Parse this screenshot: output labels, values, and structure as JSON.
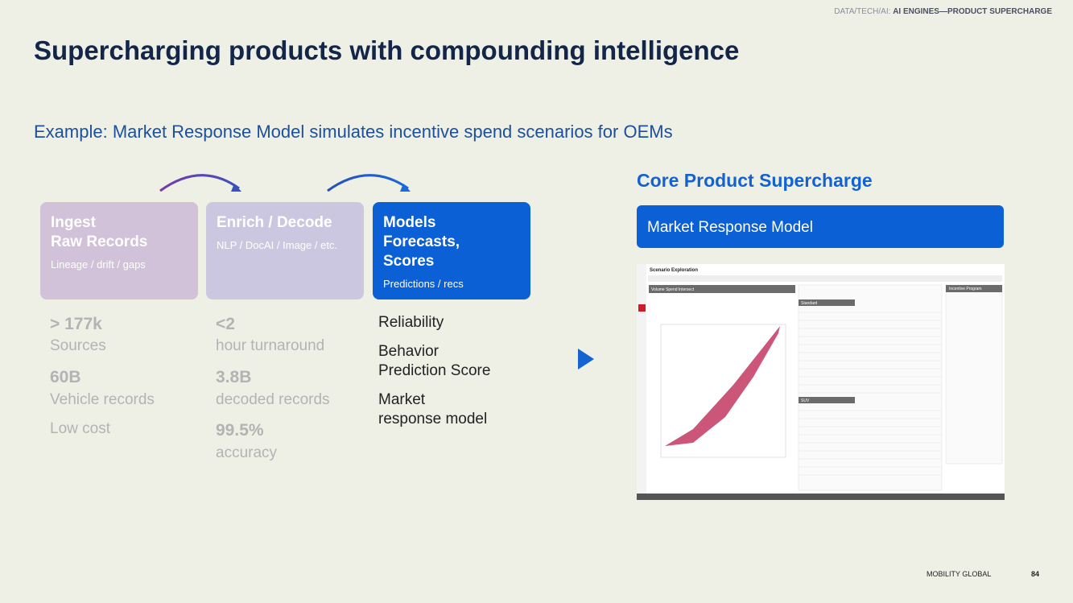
{
  "header": {
    "section": "DATA/TECH/AI: ",
    "topic": "AI ENGINES—PRODUCT SUPERCHARGE"
  },
  "title": "Supercharging products with compounding intelligence",
  "subtitle": "Example: Market Response Model simulates incentive spend scenarios for OEMs",
  "steps": [
    {
      "title_lines": [
        "Ingest",
        "Raw Records"
      ],
      "caption": "Lineage / drift / gaps"
    },
    {
      "title_lines": [
        "Enrich / Decode"
      ],
      "caption": "NLP / DocAI / Image / etc."
    },
    {
      "title_lines": [
        "Models",
        "Forecasts,",
        "Scores"
      ],
      "caption": "Predictions / recs"
    }
  ],
  "stats": [
    [
      {
        "value": "> 177k",
        "label": "Sources"
      },
      {
        "value": "60B",
        "label": "Vehicle records"
      },
      {
        "label": "Low cost"
      }
    ],
    [
      {
        "value": "<2",
        "label": "hour turnaround"
      },
      {
        "value": "3.8B",
        "label": "decoded records"
      },
      {
        "value": "99.5%",
        "label": "accuracy"
      }
    ]
  ],
  "outcomes": [
    [
      "Reliability"
    ],
    [
      "Behavior",
      "Prediction Score"
    ],
    [
      "Market",
      "response model"
    ]
  ],
  "product": {
    "heading": "Core Product Supercharge",
    "banner": "Market Response Model",
    "screenshot": {
      "title": "Scenario Exploration",
      "panel": "Volume Spend Intersect",
      "tables": [
        "Standard",
        "SUV"
      ],
      "side": "Incentive Program"
    }
  },
  "footer": {
    "brand": "MOBILITY GLOBAL",
    "page": "84"
  }
}
